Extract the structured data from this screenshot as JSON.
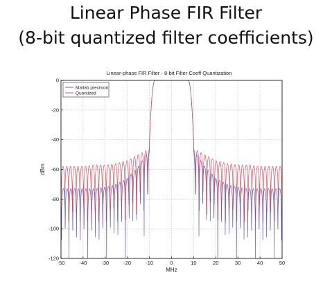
{
  "slide": {
    "title_line1": "Linear Phase FIR Filter",
    "title_line2": "(8-bit quantized filter coefficients)"
  },
  "chart_data": {
    "type": "line",
    "title": "Linear-phase FIR Filter - 8-bit Filter Coeff Quantization",
    "xlabel": "MHz",
    "ylabel": "dBm",
    "xlim": [
      -50,
      50
    ],
    "ylim": [
      -120,
      0
    ],
    "xticks": [
      "-50",
      "-40",
      "-30",
      "-20",
      "-10",
      "0",
      "10",
      "20",
      "30",
      "40",
      "50"
    ],
    "yticks": [
      "0",
      "-20",
      "-40",
      "-60",
      "-80",
      "-100",
      "-120"
    ],
    "grid": true,
    "legend_position": "top-left",
    "passband_edge_mhz": 10,
    "series": [
      {
        "name": "Matlab precision",
        "color": "#4a4ab8",
        "sidelobe_x": [
          10,
          15,
          20,
          25,
          30,
          35,
          40,
          45,
          50
        ],
        "sidelobe_peak_dbm": [
          -47,
          -58,
          -66,
          -70,
          -72,
          -73,
          -73,
          -73,
          -73
        ],
        "null_floor_dbm": -120
      },
      {
        "name": "Quantized",
        "color": "#d04050",
        "sidelobe_x": [
          10,
          15,
          20,
          25,
          30,
          35,
          40,
          45,
          50
        ],
        "sidelobe_peak_dbm": [
          -46,
          -50,
          -54,
          -56,
          -57,
          -57,
          -58,
          -58,
          -58
        ],
        "null_floor_dbm": -95
      }
    ]
  }
}
